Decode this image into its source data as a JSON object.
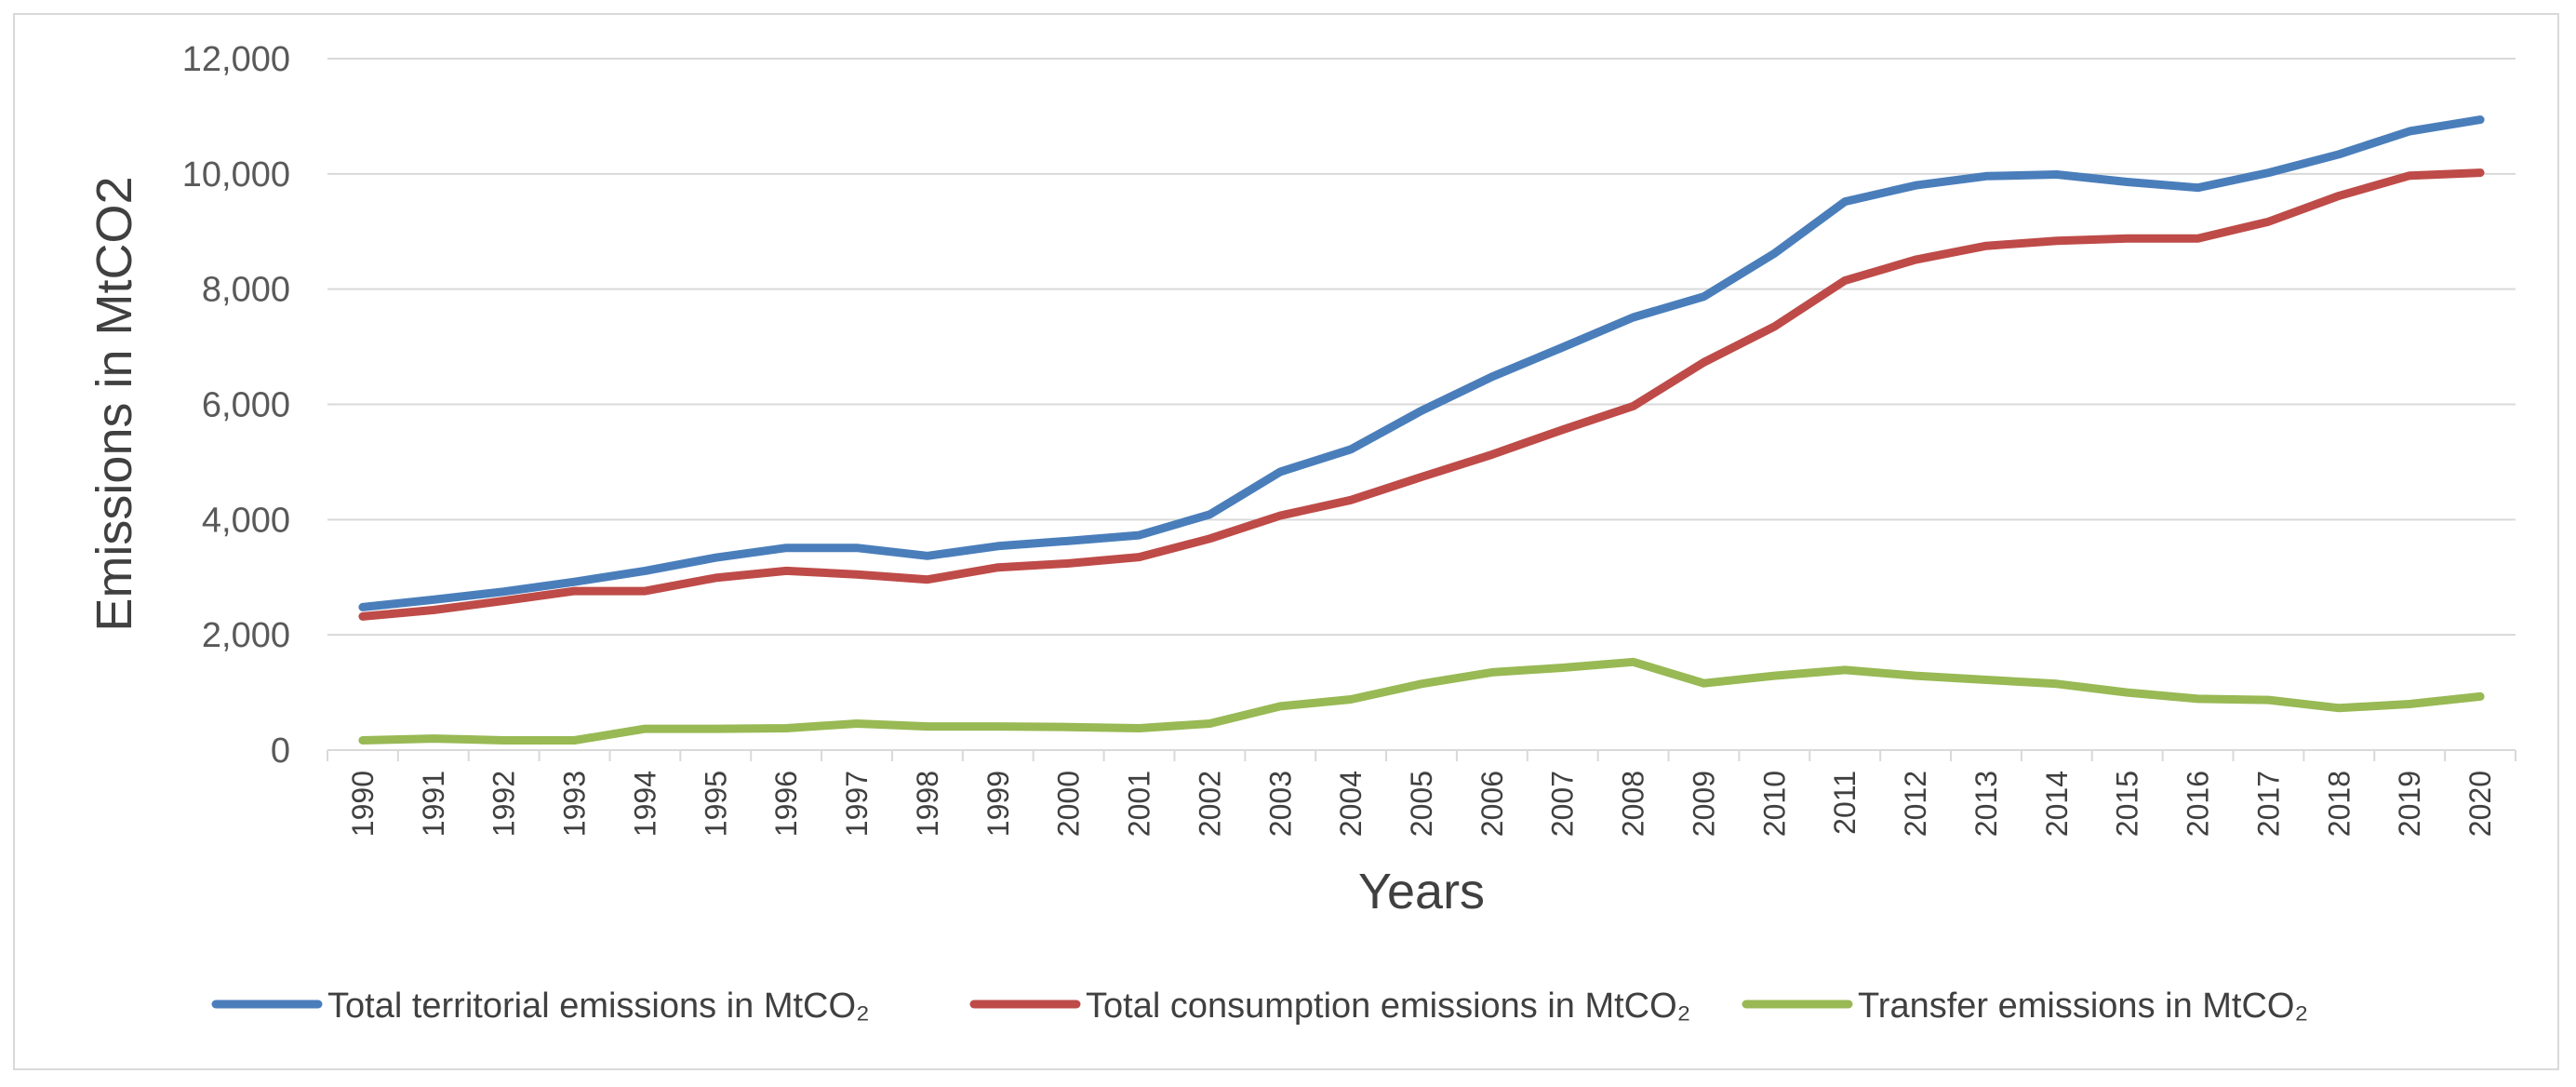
{
  "chart_data": {
    "type": "line",
    "title": "",
    "xlabel": "Years",
    "ylabel": "Emissions in MtCO2",
    "ylim": [
      0,
      12000
    ],
    "yticks": [
      "0",
      "2,000",
      "4,000",
      "6,000",
      "8,000",
      "10,000",
      "12,000"
    ],
    "ytick_values": [
      0,
      2000,
      4000,
      6000,
      8000,
      10000,
      12000
    ],
    "grid": true,
    "legend_position": "bottom",
    "categories": [
      "1990",
      "1991",
      "1992",
      "1993",
      "1994",
      "1995",
      "1996",
      "1997",
      "1998",
      "1999",
      "2000",
      "2001",
      "2002",
      "2003",
      "2004",
      "2005",
      "2006",
      "2007",
      "2008",
      "2009",
      "2010",
      "2011",
      "2012",
      "2013",
      "2014",
      "2015",
      "2016",
      "2017",
      "2018",
      "2019",
      "2020"
    ],
    "series": [
      {
        "name": "Total territorial emissions in MtCO₂",
        "color": "#4a7ebb",
        "values": [
          2480,
          2610,
          2750,
          2920,
          3110,
          3340,
          3510,
          3510,
          3370,
          3540,
          3630,
          3730,
          4090,
          4830,
          5220,
          5890,
          6480,
          6990,
          7510,
          7870,
          8620,
          9520,
          9800,
          9960,
          9990,
          9860,
          9760,
          10020,
          10340,
          10740,
          10940
        ]
      },
      {
        "name": "Total consumption emissions in MtCO₂",
        "color": "#be4b48",
        "values": [
          2320,
          2430,
          2590,
          2760,
          2760,
          2990,
          3110,
          3050,
          2960,
          3170,
          3240,
          3350,
          3670,
          4070,
          4340,
          4740,
          5130,
          5560,
          5970,
          6730,
          7350,
          8150,
          8510,
          8750,
          8840,
          8880,
          8880,
          9170,
          9620,
          9970,
          10020
        ]
      },
      {
        "name": "Transfer emissions in MtCO₂",
        "color": "#98b954",
        "values": [
          170,
          200,
          170,
          170,
          370,
          370,
          380,
          460,
          410,
          410,
          400,
          380,
          460,
          760,
          880,
          1150,
          1350,
          1430,
          1530,
          1160,
          1290,
          1390,
          1290,
          1220,
          1150,
          1000,
          890,
          870,
          730,
          800,
          930
        ]
      }
    ]
  }
}
